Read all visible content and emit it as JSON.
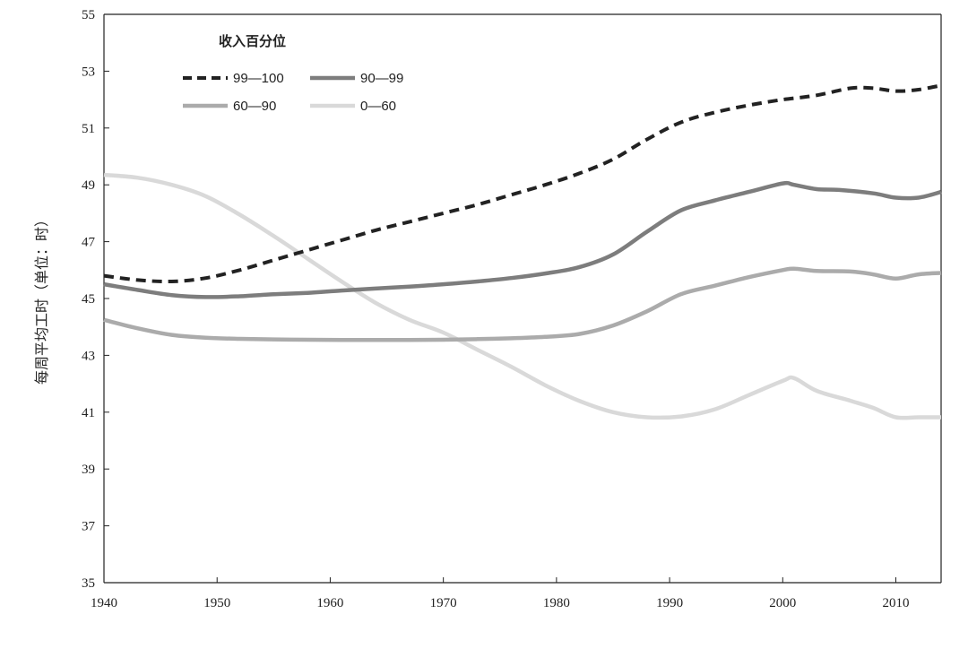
{
  "chart_data": {
    "type": "line",
    "title": "",
    "xlabel": "",
    "ylabel": "每周平均工时（单位：时）",
    "xlim": [
      1940,
      2014
    ],
    "ylim": [
      35,
      55
    ],
    "xticks": [
      1940,
      1950,
      1960,
      1970,
      1980,
      1990,
      2000,
      2010
    ],
    "yticks": [
      35,
      37,
      39,
      41,
      43,
      45,
      47,
      49,
      51,
      53,
      55
    ],
    "grid": false,
    "legend": {
      "title": "收入百分位",
      "placement": "top-left"
    },
    "series": [
      {
        "name": "99—100",
        "color": "#222222",
        "style": "dashed",
        "x": [
          1940,
          1943,
          1946,
          1949,
          1952,
          1955,
          1958,
          1961,
          1964,
          1967,
          1970,
          1973,
          1976,
          1979,
          1982,
          1985,
          1988,
          1991,
          1994,
          1997,
          2000,
          2003,
          2006,
          2008,
          2010,
          2012,
          2014
        ],
        "y": [
          45.8,
          45.65,
          45.6,
          45.72,
          46.0,
          46.35,
          46.7,
          47.05,
          47.4,
          47.7,
          48.0,
          48.3,
          48.65,
          49.0,
          49.4,
          49.9,
          50.6,
          51.2,
          51.55,
          51.8,
          52.0,
          52.15,
          52.4,
          52.4,
          52.3,
          52.35,
          52.5
        ]
      },
      {
        "name": "90—99",
        "color": "#7d7d7d",
        "style": "solid",
        "x": [
          1940,
          1943,
          1946,
          1949,
          1952,
          1955,
          1958,
          1961,
          1964,
          1967,
          1970,
          1973,
          1976,
          1979,
          1982,
          1985,
          1988,
          1991,
          1994,
          1997,
          2000,
          2001,
          2003,
          2005,
          2008,
          2010,
          2012,
          2014
        ],
        "y": [
          45.5,
          45.3,
          45.12,
          45.05,
          45.08,
          45.15,
          45.2,
          45.28,
          45.35,
          45.42,
          45.5,
          45.6,
          45.72,
          45.88,
          46.1,
          46.55,
          47.35,
          48.1,
          48.45,
          48.75,
          49.05,
          49.0,
          48.85,
          48.82,
          48.7,
          48.55,
          48.55,
          48.75
        ]
      },
      {
        "name": "60—90",
        "color": "#ababab",
        "style": "solid",
        "x": [
          1940,
          1943,
          1946,
          1949,
          1952,
          1955,
          1958,
          1961,
          1964,
          1967,
          1970,
          1973,
          1976,
          1979,
          1982,
          1985,
          1988,
          1991,
          1994,
          1997,
          2000,
          2001,
          2003,
          2006,
          2008,
          2010,
          2012,
          2014
        ],
        "y": [
          44.25,
          43.95,
          43.72,
          43.62,
          43.58,
          43.56,
          43.55,
          43.54,
          43.54,
          43.54,
          43.55,
          43.57,
          43.6,
          43.65,
          43.75,
          44.05,
          44.55,
          45.15,
          45.45,
          45.75,
          46.0,
          46.05,
          45.97,
          45.95,
          45.85,
          45.7,
          45.85,
          45.9
        ]
      },
      {
        "name": "0—60",
        "color": "#d9d9d9",
        "style": "solid",
        "x": [
          1940,
          1943,
          1946,
          1949,
          1952,
          1955,
          1958,
          1961,
          1964,
          1967,
          1970,
          1973,
          1976,
          1979,
          1982,
          1985,
          1988,
          1991,
          1994,
          1997,
          2000,
          2001,
          2003,
          2006,
          2008,
          2010,
          2012,
          2014
        ],
        "y": [
          49.35,
          49.25,
          49.0,
          48.6,
          47.95,
          47.2,
          46.4,
          45.6,
          44.85,
          44.25,
          43.8,
          43.2,
          42.6,
          41.95,
          41.4,
          41.0,
          40.82,
          40.85,
          41.1,
          41.6,
          42.1,
          42.2,
          41.75,
          41.4,
          41.15,
          40.82,
          40.82,
          40.82
        ]
      }
    ]
  }
}
